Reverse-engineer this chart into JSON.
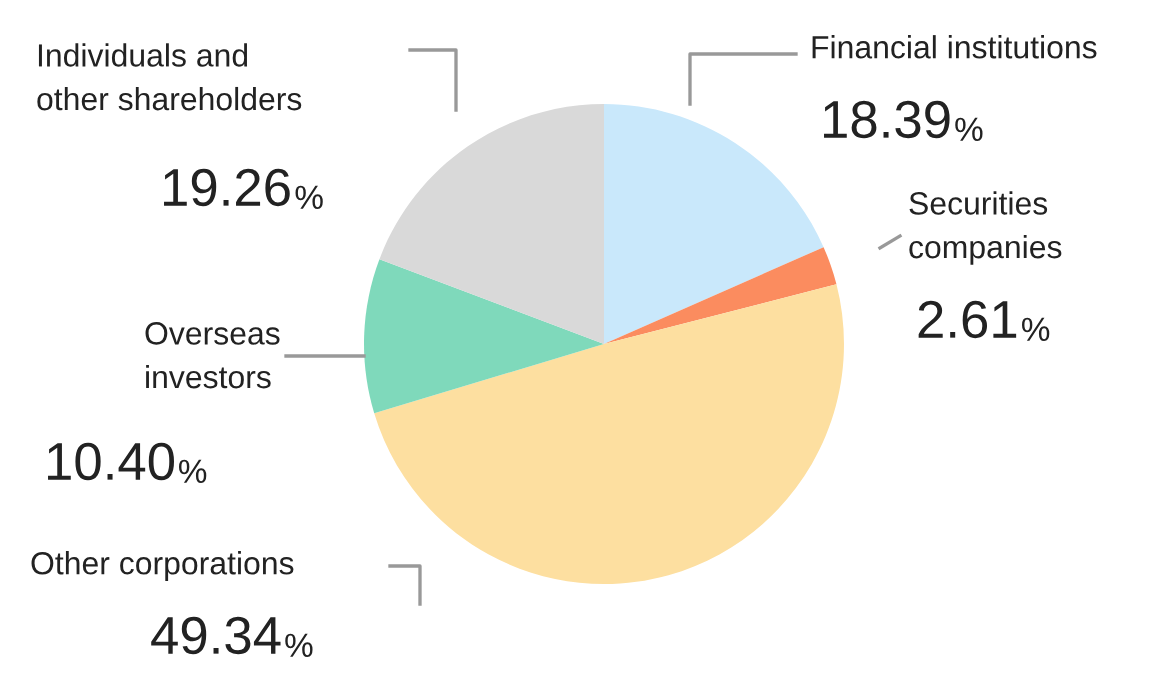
{
  "chart_data": {
    "type": "pie",
    "categories": [
      "Financial institutions",
      "Securities\ncompanies",
      "Other corporations",
      "Overseas\ninvestors",
      "Individuals and\nother shareholders"
    ],
    "values": [
      18.39,
      2.61,
      49.34,
      10.4,
      19.26
    ],
    "value_labels": [
      "18.39%",
      "2.61%",
      "49.34%",
      "10.40%",
      "19.26%"
    ],
    "colors": [
      "#c9e8fb",
      "#fb8c5f",
      "#fddfa0",
      "#7fd9bb",
      "#d9d9d9"
    ]
  }
}
